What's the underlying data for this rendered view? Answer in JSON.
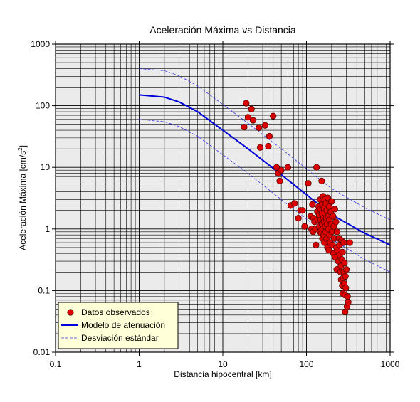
{
  "chart_data": {
    "type": "scatter",
    "title": "Aceleración Máxima vs Distancia",
    "xlabel": "Distancia hipocentral [km]",
    "ylabel_main": "Aceleración Máxima [cm/s",
    "ylabel_sup": "2",
    "ylabel_tail": "]",
    "xscale": "log",
    "yscale": "log",
    "xlim": [
      0.1,
      1000
    ],
    "ylim": [
      0.01,
      1000
    ],
    "grid": true,
    "legend_position": "bottom-left",
    "xticks": [
      {
        "value": 0.1,
        "label": "0.1"
      },
      {
        "value": 1,
        "label": "1"
      },
      {
        "value": 10,
        "label": "10"
      },
      {
        "value": 100,
        "label": "100"
      },
      {
        "value": 1000,
        "label": "1000"
      }
    ],
    "yticks": [
      {
        "value": 0.01,
        "label": "0.01"
      },
      {
        "value": 0.1,
        "label": "0.1"
      },
      {
        "value": 1,
        "label": "1"
      },
      {
        "value": 10,
        "label": "10"
      },
      {
        "value": 100,
        "label": "100"
      },
      {
        "value": 1000,
        "label": "1000"
      }
    ],
    "colors": {
      "background": "#ebebeb",
      "grid": "#000000",
      "observed_fill": "#dd0000",
      "observed_edge": "#550000",
      "model": "#0000dd",
      "std": "#3333ee",
      "legend_bg": "#ffffd8"
    },
    "series": [
      {
        "name": "Datos observados",
        "kind": "points",
        "points": [
          [
            19,
            110
          ],
          [
            20,
            65
          ],
          [
            22,
            88
          ],
          [
            23,
            58
          ],
          [
            18,
            45
          ],
          [
            27,
            44
          ],
          [
            32,
            48
          ],
          [
            36,
            32
          ],
          [
            40,
            68
          ],
          [
            28,
            21
          ],
          [
            35,
            22
          ],
          [
            44,
            10
          ],
          [
            46,
            8
          ],
          [
            48,
            6
          ],
          [
            50,
            9
          ],
          [
            60,
            10
          ],
          [
            65,
            2.4
          ],
          [
            72,
            2.6
          ],
          [
            80,
            1.5
          ],
          [
            85,
            2
          ],
          [
            90,
            2
          ],
          [
            95,
            1.1
          ],
          [
            105,
            5.5
          ],
          [
            112,
            1.6
          ],
          [
            115,
            1
          ],
          [
            118,
            2.5
          ],
          [
            120,
            0.9
          ],
          [
            122,
            1.5
          ],
          [
            125,
            1.3
          ],
          [
            128,
            1
          ],
          [
            130,
            0.55
          ],
          [
            132,
            10
          ],
          [
            135,
            1.9
          ],
          [
            137,
            1.4
          ],
          [
            140,
            2.3
          ],
          [
            142,
            1.7
          ],
          [
            143,
            1.1
          ],
          [
            145,
            0.9
          ],
          [
            146,
            3
          ],
          [
            147,
            2.1
          ],
          [
            148,
            1.4
          ],
          [
            150,
            0.85
          ],
          [
            152,
            6
          ],
          [
            153,
            1.8
          ],
          [
            154,
            1.2
          ],
          [
            155,
            0.7
          ],
          [
            156,
            2.5
          ],
          [
            157,
            1
          ],
          [
            158,
            3.4
          ],
          [
            160,
            1.5
          ],
          [
            161,
            0.8
          ],
          [
            162,
            2.2
          ],
          [
            163,
            1.3
          ],
          [
            164,
            0.6
          ],
          [
            165,
            3
          ],
          [
            166,
            1.8
          ],
          [
            168,
            1.1
          ],
          [
            170,
            0.9
          ],
          [
            171,
            2.6
          ],
          [
            172,
            1.5
          ],
          [
            174,
            0.7
          ],
          [
            175,
            2
          ],
          [
            177,
            1.2
          ],
          [
            178,
            0.5
          ],
          [
            180,
            3.2
          ],
          [
            182,
            1.6
          ],
          [
            184,
            1
          ],
          [
            185,
            0.45
          ],
          [
            187,
            2.3
          ],
          [
            189,
            1.4
          ],
          [
            190,
            0.8
          ],
          [
            192,
            0.6
          ],
          [
            195,
            1.9
          ],
          [
            197,
            1.2
          ],
          [
            200,
            2.8
          ],
          [
            202,
            0.9
          ],
          [
            205,
            0.55
          ],
          [
            208,
            1.6
          ],
          [
            210,
            0.4
          ],
          [
            212,
            1.1
          ],
          [
            215,
            0.7
          ],
          [
            218,
            2.1
          ],
          [
            220,
            0.35
          ],
          [
            225,
            1.3
          ],
          [
            228,
            0.5
          ],
          [
            230,
            0.22
          ],
          [
            232,
            0.9
          ],
          [
            235,
            0.45
          ],
          [
            240,
            0.3
          ],
          [
            245,
            0.7
          ],
          [
            248,
            0.55
          ],
          [
            250,
            0.38
          ],
          [
            255,
            0.2
          ],
          [
            258,
            0.25
          ],
          [
            260,
            0.15
          ],
          [
            262,
            0.65
          ],
          [
            265,
            0.32
          ],
          [
            268,
            0.12
          ],
          [
            270,
            0.42
          ],
          [
            272,
            0.09
          ],
          [
            275,
            0.16
          ],
          [
            278,
            0.6
          ],
          [
            280,
            0.2
          ],
          [
            282,
            0.13
          ],
          [
            285,
            0.28
          ],
          [
            288,
            0.085
          ],
          [
            290,
            0.045
          ],
          [
            292,
            0.17
          ],
          [
            295,
            0.11
          ],
          [
            300,
            0.22
          ],
          [
            305,
            0.055
          ],
          [
            310,
            0.08
          ],
          [
            315,
            0.065
          ],
          [
            330,
            0.6
          ]
        ]
      },
      {
        "name": "Modelo de atenuación",
        "kind": "line",
        "style": "solid",
        "points": [
          [
            1,
            150
          ],
          [
            2,
            138
          ],
          [
            3,
            115
          ],
          [
            5,
            80
          ],
          [
            10,
            40
          ],
          [
            20,
            20
          ],
          [
            50,
            7.6
          ],
          [
            100,
            3.6
          ],
          [
            200,
            1.7
          ],
          [
            500,
            0.85
          ],
          [
            1000,
            0.55
          ]
        ]
      },
      {
        "name": "Desviación estándar",
        "kind": "line",
        "style": "dashed",
        "points": [
          [
            1,
            400
          ],
          [
            2,
            370
          ],
          [
            3,
            305
          ],
          [
            5,
            210
          ],
          [
            10,
            105
          ],
          [
            20,
            52
          ],
          [
            50,
            20
          ],
          [
            100,
            9.5
          ],
          [
            200,
            4.5
          ],
          [
            500,
            2.2
          ],
          [
            1000,
            1.4
          ]
        ]
      },
      {
        "name": "",
        "kind": "line",
        "style": "dashed",
        "points": [
          [
            1,
            60
          ],
          [
            2,
            55
          ],
          [
            3,
            46
          ],
          [
            5,
            32
          ],
          [
            10,
            16
          ],
          [
            20,
            8
          ],
          [
            50,
            3
          ],
          [
            100,
            1.45
          ],
          [
            200,
            0.68
          ],
          [
            500,
            0.32
          ],
          [
            1000,
            0.2
          ]
        ]
      }
    ]
  }
}
